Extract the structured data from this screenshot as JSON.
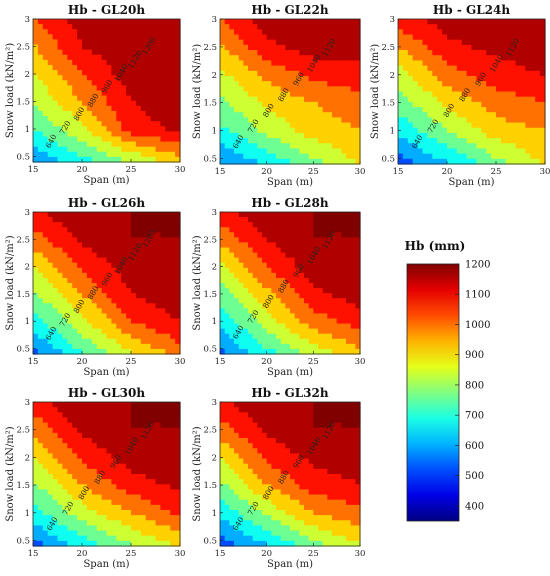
{
  "figure": {
    "colorbar": {
      "title": "Hb (mm)",
      "min": 350,
      "max": 1200,
      "ticks": [
        400,
        500,
        600,
        700,
        800,
        900,
        1000,
        1100,
        1200
      ],
      "colormap": "jet"
    }
  },
  "chart_data": [
    {
      "type": "heatmap",
      "title": "Hb - GL20h",
      "xlabel": "Span (m)",
      "ylabel": "Snow load (kN/m²)",
      "xlim": [
        15,
        30
      ],
      "ylim": [
        0.4,
        3
      ],
      "x_ticks": [
        15,
        20,
        25,
        30
      ],
      "y_ticks": [
        0.5,
        1,
        1.5,
        2,
        2.5,
        3
      ],
      "contour_labels": [
        "640",
        "720",
        "800",
        "880",
        "960",
        "1040",
        "1120",
        "1200"
      ],
      "x": [
        15,
        20,
        25,
        30
      ],
      "y": [
        0.4,
        0.5,
        1,
        1.5,
        2,
        2.5,
        3
      ],
      "z": [
        [
          560,
          680,
          800,
          920
        ],
        [
          600,
          720,
          840,
          960
        ],
        [
          720,
          860,
          1080,
          1140
        ],
        [
          800,
          960,
          1120,
          1170
        ],
        [
          880,
          1040,
          1160,
          1200
        ],
        [
          950,
          1120,
          1180,
          1200
        ],
        [
          1040,
          1160,
          1200,
          1200
        ]
      ]
    },
    {
      "type": "heatmap",
      "title": "Hb - GL22h",
      "xlabel": "Span (m)",
      "ylabel": "Snow load (kN/m²)",
      "xlim": [
        15,
        30
      ],
      "ylim": [
        0.4,
        3
      ],
      "x_ticks": [
        15,
        20,
        25,
        30
      ],
      "y_ticks": [
        0.5,
        1,
        1.5,
        2,
        2.5,
        3
      ],
      "contour_labels": [
        "640",
        "720",
        "800",
        "880",
        "960",
        "1040",
        "1120"
      ],
      "x": [
        15,
        20,
        25,
        30
      ],
      "y": [
        0.4,
        0.5,
        1,
        1.5,
        2,
        2.5,
        3
      ],
      "z": [
        [
          540,
          640,
          760,
          880
        ],
        [
          580,
          680,
          800,
          900
        ],
        [
          700,
          820,
          920,
          960
        ],
        [
          780,
          900,
          960,
          1000
        ],
        [
          860,
          980,
          1060,
          1100
        ],
        [
          940,
          1100,
          1160,
          1140
        ],
        [
          1040,
          1160,
          1200,
          1180
        ]
      ]
    },
    {
      "type": "heatmap",
      "title": "Hb - GL24h",
      "xlabel": "Span (m)",
      "ylabel": "Snow load (kN/m²)",
      "xlim": [
        15,
        30
      ],
      "ylim": [
        0.4,
        3
      ],
      "x_ticks": [
        15,
        20,
        25,
        30
      ],
      "y_ticks": [
        0.5,
        1,
        1.5,
        2,
        2.5,
        3
      ],
      "contour_labels": [
        "640",
        "720",
        "800",
        "880",
        "960",
        "1040",
        "1120"
      ],
      "x": [
        15,
        20,
        25,
        30
      ],
      "y": [
        0.4,
        0.5,
        1,
        1.5,
        2,
        2.5,
        3
      ],
      "z": [
        [
          500,
          620,
          760,
          880
        ],
        [
          540,
          660,
          800,
          900
        ],
        [
          660,
          800,
          920,
          960
        ],
        [
          760,
          900,
          1000,
          1040
        ],
        [
          840,
          1000,
          1080,
          1120
        ],
        [
          960,
          1100,
          1140,
          1180
        ],
        [
          1080,
          1160,
          1180,
          1200
        ]
      ]
    },
    {
      "type": "heatmap",
      "title": "Hb - GL26h",
      "xlabel": "Span (m)",
      "ylabel": "Snow load (kN/m²)",
      "xlim": [
        15,
        30
      ],
      "ylim": [
        0.4,
        3
      ],
      "x_ticks": [
        15,
        20,
        25,
        30
      ],
      "y_ticks": [
        0.5,
        1,
        1.5,
        2,
        2.5,
        3
      ],
      "contour_labels": [
        "640",
        "720",
        "800",
        "880",
        "960",
        "1040",
        "1120",
        "1200"
      ],
      "x": [
        15,
        20,
        25,
        30
      ],
      "y": [
        0.4,
        0.5,
        1,
        1.5,
        2,
        2.5,
        3
      ],
      "z": [
        [
          520,
          700,
          860,
          960
        ],
        [
          560,
          740,
          900,
          1020
        ],
        [
          680,
          860,
          1040,
          1120
        ],
        [
          780,
          960,
          1120,
          1180
        ],
        [
          880,
          1060,
          1160,
          1200
        ],
        [
          1000,
          1140,
          1200,
          1200
        ],
        [
          1100,
          1200,
          1200,
          1200
        ]
      ]
    },
    {
      "type": "heatmap",
      "title": "Hb - GL28h",
      "xlabel": "Span (m)",
      "ylabel": "Snow load (kN/m²)",
      "xlim": [
        15,
        30
      ],
      "ylim": [
        0.4,
        3
      ],
      "x_ticks": [
        15,
        20,
        25,
        30
      ],
      "y_ticks": [
        0.5,
        1,
        1.5,
        2,
        2.5,
        3
      ],
      "contour_labels": [
        "640",
        "720",
        "800",
        "880",
        "960",
        "1040",
        "1120"
      ],
      "x": [
        15,
        20,
        25,
        30
      ],
      "y": [
        0.4,
        0.5,
        1,
        1.5,
        2,
        2.5,
        3
      ],
      "z": [
        [
          520,
          680,
          820,
          920
        ],
        [
          560,
          720,
          860,
          960
        ],
        [
          660,
          840,
          1000,
          1080
        ],
        [
          760,
          940,
          1100,
          1160
        ],
        [
          860,
          1040,
          1160,
          1200
        ],
        [
          980,
          1120,
          1200,
          1200
        ],
        [
          1100,
          1180,
          1200,
          1200
        ]
      ]
    },
    {
      "type": "heatmap",
      "title": "Hb - GL30h",
      "xlabel": "Span (m)",
      "ylabel": "Snow load (kN/m²)",
      "xlim": [
        15,
        30
      ],
      "ylim": [
        0.4,
        3
      ],
      "x_ticks": [
        15,
        20,
        25,
        30
      ],
      "y_ticks": [
        0.5,
        1,
        1.5,
        2,
        2.5,
        3
      ],
      "contour_labels": [
        "640",
        "720",
        "800",
        "880",
        "960",
        "1040",
        "1120"
      ],
      "x": [
        15,
        20,
        25,
        30
      ],
      "y": [
        0.4,
        0.5,
        1,
        1.5,
        2,
        2.5,
        3
      ],
      "z": [
        [
          520,
          660,
          780,
          880
        ],
        [
          560,
          700,
          820,
          920
        ],
        [
          680,
          840,
          960,
          1060
        ],
        [
          780,
          960,
          1080,
          1140
        ],
        [
          880,
          1060,
          1160,
          1200
        ],
        [
          980,
          1140,
          1200,
          1200
        ],
        [
          1080,
          1200,
          1200,
          1200
        ]
      ]
    },
    {
      "type": "heatmap",
      "title": "Hb - GL32h",
      "xlabel": "Span (m)",
      "ylabel": "Snow load (kN/m²)",
      "xlim": [
        15,
        30
      ],
      "ylim": [
        0.4,
        3
      ],
      "x_ticks": [
        15,
        20,
        25,
        30
      ],
      "y_ticks": [
        0.5,
        1,
        1.5,
        2,
        2.5,
        3
      ],
      "contour_labels": [
        "640",
        "720",
        "800",
        "880",
        "960",
        "1040",
        "1120"
      ],
      "x": [
        15,
        20,
        25,
        30
      ],
      "y": [
        0.4,
        0.5,
        1,
        1.5,
        2,
        2.5,
        3
      ],
      "z": [
        [
          500,
          620,
          760,
          860
        ],
        [
          540,
          660,
          800,
          900
        ],
        [
          660,
          820,
          960,
          1020
        ],
        [
          780,
          960,
          1080,
          1120
        ],
        [
          880,
          1060,
          1140,
          1160
        ],
        [
          1000,
          1140,
          1200,
          1200
        ],
        [
          1100,
          1200,
          1200,
          1200
        ]
      ]
    }
  ]
}
